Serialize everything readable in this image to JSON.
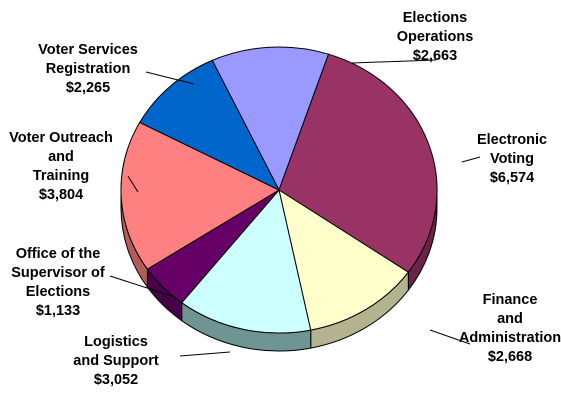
{
  "chart_data": {
    "type": "pie",
    "title": "",
    "slices": [
      {
        "label": [
          "Elections",
          "Operations"
        ],
        "value_text": "$2,663",
        "value": 2663,
        "color": "#9999FF",
        "side": "#6b6bb3"
      },
      {
        "label": [
          "Electronic",
          "Voting"
        ],
        "value_text": "$6,574",
        "value": 6574,
        "color": "#993366",
        "side": "#6b2447"
      },
      {
        "label": [
          "Finance",
          "and",
          "Administration"
        ],
        "value_text": "$2,668",
        "value": 2668,
        "color": "#FFFFCC",
        "side": "#b3b38f"
      },
      {
        "label": [
          "Logistics",
          "and Support"
        ],
        "value_text": "$3,052",
        "value": 3052,
        "color": "#CCFFFF",
        "side": "#6e9494"
      },
      {
        "label": [
          "Office of the",
          "Supervisor of",
          "Elections"
        ],
        "value_text": "$1,133",
        "value": 1133,
        "color": "#660066",
        "side": "#470047"
      },
      {
        "label": [
          "Voter Outreach",
          "and",
          "Training"
        ],
        "value_text": "$3,804",
        "value": 3804,
        "color": "#FF8080",
        "side": "#b35a5a"
      },
      {
        "label": [
          "Voter Services",
          "Registration"
        ],
        "value_text": "$2,265",
        "value": 2265,
        "color": "#0066CC",
        "side": "#00478f"
      }
    ]
  }
}
